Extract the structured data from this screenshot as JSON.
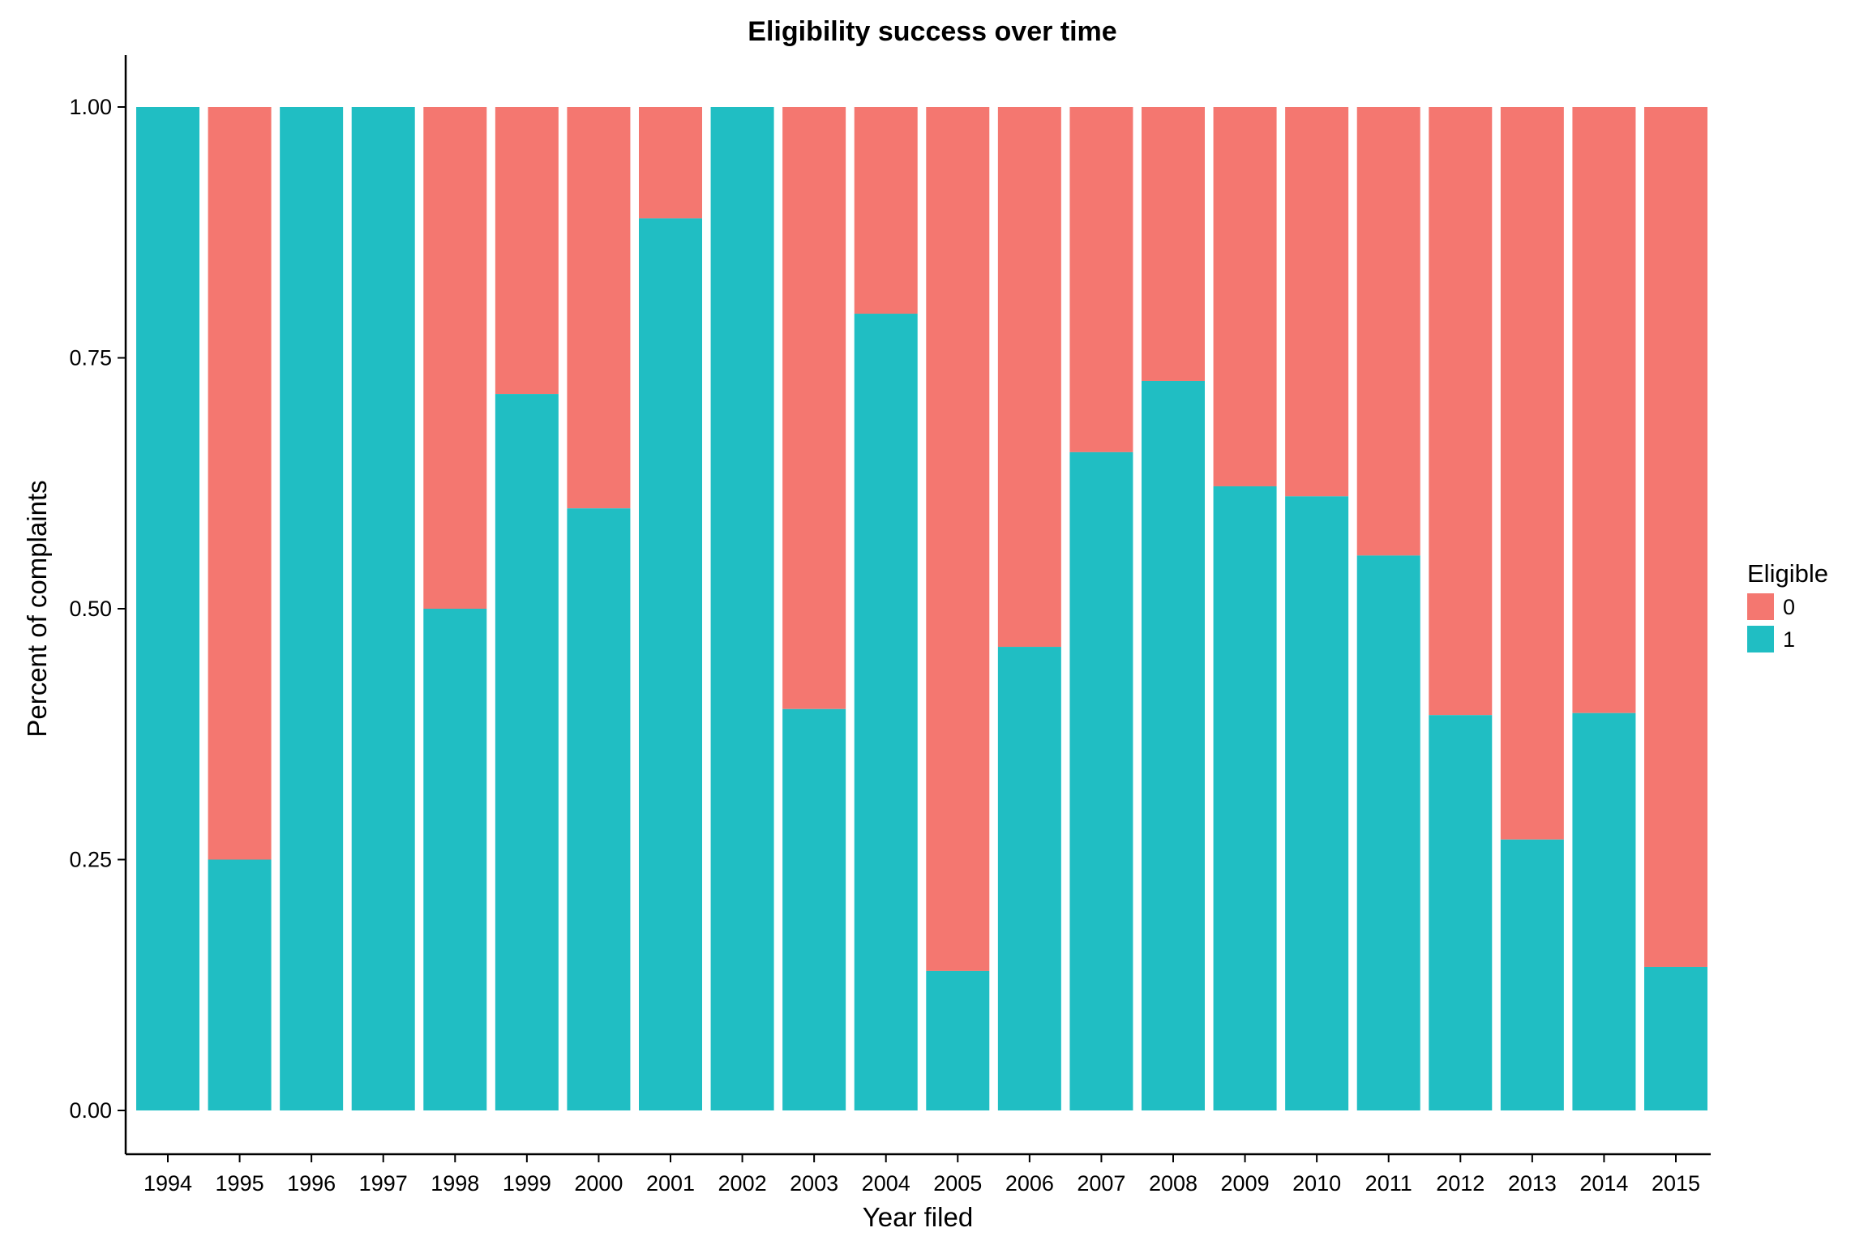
{
  "chart_data": {
    "type": "bar",
    "stacked": true,
    "title": "Eligibility success over time",
    "xlabel": "Year filed",
    "ylabel": "Percent of complaints",
    "ylim": [
      0,
      1
    ],
    "yticks": [
      "0.00",
      "0.25",
      "0.50",
      "0.75",
      "1.00"
    ],
    "grid": false,
    "legend": {
      "title": "Eligible",
      "position": "right",
      "entries": [
        "0",
        "1"
      ]
    },
    "categories": [
      "1994",
      "1995",
      "1996",
      "1997",
      "1998",
      "1999",
      "2000",
      "2001",
      "2002",
      "2003",
      "2004",
      "2005",
      "2006",
      "2007",
      "2008",
      "2009",
      "2010",
      "2011",
      "2012",
      "2013",
      "2014",
      "2015"
    ],
    "series": [
      {
        "name": "1",
        "color": "#20bec3",
        "values": [
          1.0,
          0.25,
          1.0,
          1.0,
          0.5,
          0.714,
          0.6,
          0.889,
          1.0,
          0.4,
          0.794,
          0.139,
          0.462,
          0.656,
          0.727,
          0.622,
          0.612,
          0.553,
          0.394,
          0.27,
          0.396,
          0.143
        ]
      },
      {
        "name": "0",
        "color": "#f47770",
        "values": [
          0.0,
          0.75,
          0.0,
          0.0,
          0.5,
          0.286,
          0.4,
          0.111,
          0.0,
          0.6,
          0.206,
          0.861,
          0.538,
          0.344,
          0.273,
          0.378,
          0.388,
          0.447,
          0.606,
          0.73,
          0.604,
          0.857
        ]
      }
    ]
  }
}
